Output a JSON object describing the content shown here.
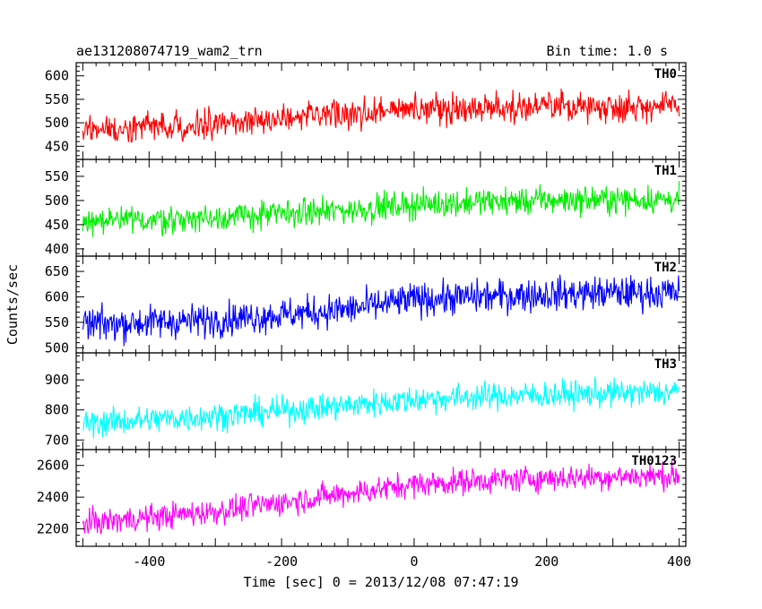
{
  "header": {
    "left_title": "ae131208074719_wam2_trn",
    "right_title": "Bin time: 1.0 s"
  },
  "axes": {
    "xlabel": "Time [sec] 0 = 2013/12/08 07:47:19",
    "ylabel": "Counts/sec"
  },
  "chart_data": {
    "type": "line",
    "title": "ae131208074719_wam2_trn",
    "subtitle": "Bin time: 1.0 s",
    "xlabel": "Time [sec] 0 = 2013/12/08 07:47:19",
    "ylabel": "Counts/sec",
    "xlim": [
      -510,
      410
    ],
    "x_ticks": [
      -400,
      -200,
      0,
      200,
      400
    ],
    "x_range_data": [
      -500,
      400
    ],
    "bin_time_s": 1.0,
    "grid": false,
    "panels": [
      {
        "name": "TH0",
        "color": "#ff0000",
        "ylim": [
          422,
          628
        ],
        "y_ticks": [
          450,
          500,
          550,
          600
        ],
        "trend": {
          "x": [
            -500,
            -300,
            -100,
            0,
            100,
            200,
            300,
            400
          ],
          "y": [
            485,
            498,
            518,
            530,
            532,
            535,
            535,
            535
          ]
        },
        "noise_amplitude": 28
      },
      {
        "name": "TH1",
        "color": "#00ee00",
        "ylim": [
          385,
          585
        ],
        "y_ticks": [
          400,
          450,
          500,
          550
        ],
        "trend": {
          "x": [
            -500,
            -300,
            -100,
            0,
            100,
            200,
            300,
            400
          ],
          "y": [
            455,
            465,
            480,
            492,
            497,
            500,
            502,
            502
          ]
        },
        "noise_amplitude": 26
      },
      {
        "name": "TH2",
        "color": "#0000ff",
        "ylim": [
          490,
          680
        ],
        "y_ticks": [
          500,
          550,
          600,
          650
        ],
        "trend": {
          "x": [
            -500,
            -300,
            -100,
            0,
            100,
            200,
            300,
            400
          ],
          "y": [
            545,
            555,
            575,
            595,
            600,
            605,
            608,
            608
          ]
        },
        "noise_amplitude": 30
      },
      {
        "name": "TH3",
        "color": "#00ffff",
        "ylim": [
          668,
          990
        ],
        "y_ticks": [
          700,
          800,
          900
        ],
        "trend": {
          "x": [
            -500,
            -300,
            -100,
            0,
            100,
            200,
            300,
            400
          ],
          "y": [
            755,
            780,
            815,
            835,
            845,
            850,
            855,
            860
          ]
        },
        "noise_amplitude": 42
      },
      {
        "name": "TH0123",
        "color": "#ff00ff",
        "ylim": [
          2090,
          2700
        ],
        "y_ticks": [
          2200,
          2400,
          2600
        ],
        "trend": {
          "x": [
            -500,
            -300,
            -100,
            0,
            100,
            200,
            300,
            400
          ],
          "y": [
            2235,
            2310,
            2425,
            2480,
            2505,
            2520,
            2530,
            2535
          ]
        },
        "noise_amplitude": 75
      }
    ]
  }
}
